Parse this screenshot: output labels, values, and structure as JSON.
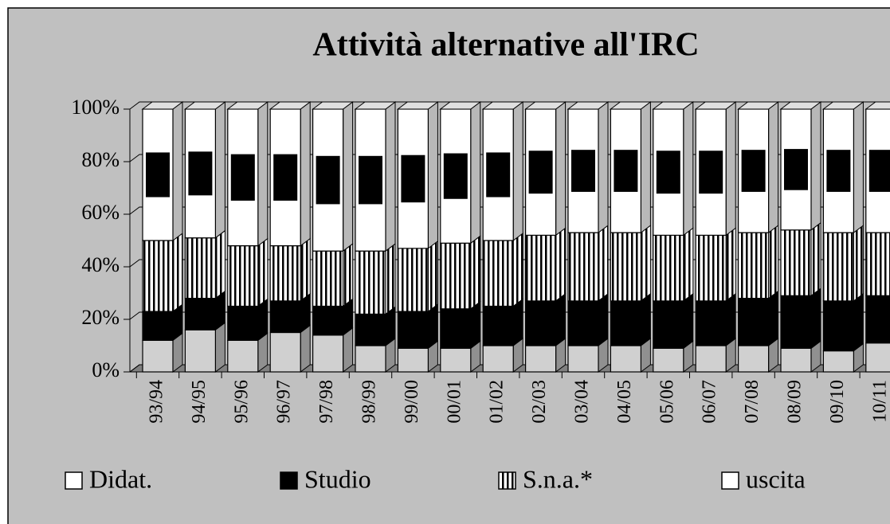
{
  "chart_data": {
    "type": "stacked-bar-3d",
    "title": "Attività alternative all'IRC",
    "categories": [
      "93/94",
      "94/95",
      "95/96",
      "96/97",
      "97/98",
      "98/99",
      "99/00",
      "00/01",
      "01/02",
      "02/03",
      "03/04",
      "04/05",
      "05/06",
      "06/07",
      "07/08",
      "08/09",
      "09/10",
      "10/11"
    ],
    "series": [
      {
        "name": "Didat.",
        "color": "#d0d0d0",
        "values": [
          12,
          16,
          12,
          15,
          14,
          10,
          9,
          9,
          10,
          10,
          10,
          10,
          9,
          10,
          10,
          9,
          8,
          11
        ]
      },
      {
        "name": "Studio",
        "color": "#000000",
        "values": [
          11,
          12,
          13,
          12,
          11,
          12,
          14,
          15,
          15,
          17,
          17,
          17,
          18,
          17,
          18,
          20,
          19,
          18
        ]
      },
      {
        "name": "S.n.a.*",
        "color": "#ffffff",
        "pattern": "vertical-stripes",
        "values": [
          27,
          23,
          23,
          21,
          21,
          24,
          24,
          25,
          25,
          25,
          26,
          26,
          25,
          25,
          25,
          25,
          26,
          24
        ]
      },
      {
        "name": "uscita",
        "color": "#ffffff",
        "values": [
          50,
          49,
          52,
          52,
          54,
          54,
          53,
          51,
          50,
          48,
          47,
          47,
          48,
          48,
          47,
          46,
          47,
          47
        ]
      }
    ],
    "ylim": [
      0,
      100
    ],
    "yticks": [
      {
        "value": 0,
        "label": "0%"
      },
      {
        "value": 20,
        "label": "20%"
      },
      {
        "value": 40,
        "label": "40%"
      },
      {
        "value": 60,
        "label": "60%"
      },
      {
        "value": 80,
        "label": "80%"
      },
      {
        "value": 100,
        "label": "100%"
      }
    ],
    "grid": true
  }
}
